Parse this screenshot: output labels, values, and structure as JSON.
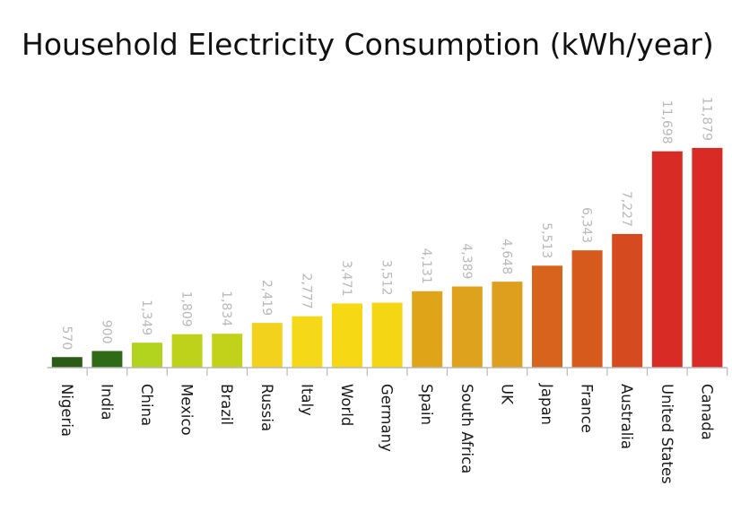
{
  "chart_data": {
    "type": "bar",
    "title": "Household Electricity Consumption (kWh/year)",
    "xlabel": "",
    "ylabel": "",
    "ylim": [
      0,
      12500
    ],
    "grid": false,
    "legend": "none",
    "categories": [
      "Nigeria",
      "India",
      "China",
      "Mexico",
      "Brazil",
      "Russia",
      "Italy",
      "World",
      "Germany",
      "Spain",
      "South Africa",
      "UK",
      "Japan",
      "France",
      "Australia",
      "United States",
      "Canada"
    ],
    "values": [
      570,
      900,
      1349,
      1809,
      1834,
      2419,
      2777,
      3471,
      3512,
      4131,
      4389,
      4648,
      5513,
      6343,
      7227,
      11698,
      11879
    ],
    "value_labels": [
      "570",
      "900",
      "1,349",
      "1,809",
      "1,834",
      "2,419",
      "2,777",
      "3,471",
      "3,512",
      "4,131",
      "4,389",
      "4,648",
      "5,513",
      "6,343",
      "7,227",
      "11,698",
      "11,879"
    ],
    "colors": [
      "#2b5b16",
      "#2f6a17",
      "#b3d41e",
      "#bed21c",
      "#c2d21a",
      "#f3d21d",
      "#f5d818",
      "#f6d914",
      "#f4d614",
      "#e0a418",
      "#dea21c",
      "#de9f1e",
      "#d8631d",
      "#d55a1c",
      "#d54b1f",
      "#d92b26",
      "#d92a26"
    ],
    "axis_color": "#b8b8b8"
  }
}
